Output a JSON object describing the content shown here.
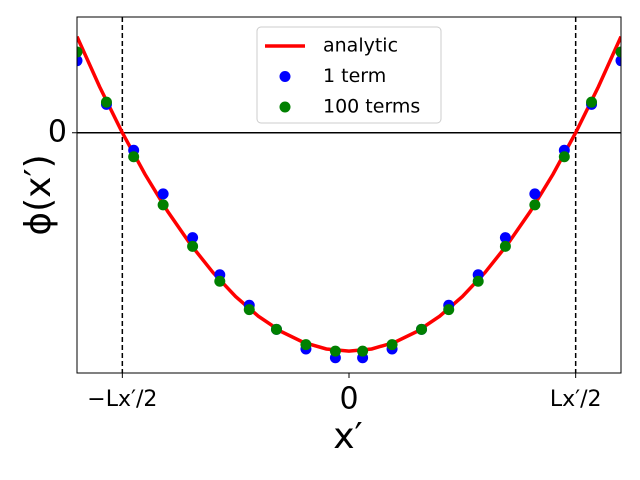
{
  "chart_data": {
    "type": "line",
    "xlabel": "x′",
    "ylabel": "ϕ(x′)",
    "xlim": [
      -1.2,
      1.2
    ],
    "ylim": [
      -1.1,
      0.53
    ],
    "xticks": [
      {
        "value": -1,
        "label": "−Lx′/2"
      },
      0,
      {
        "value": 1,
        "label": "Lx′/2"
      }
    ],
    "yticks": [
      0
    ],
    "hline": 0,
    "vlines": [
      -1,
      1
    ],
    "legend": "upper center",
    "series": [
      {
        "name": "analytic",
        "type": "line",
        "color": "#ff0000",
        "x": [
          -1.2,
          -1.1,
          -1.0,
          -0.9,
          -0.8,
          -0.7,
          -0.6,
          -0.5,
          -0.4,
          -0.3,
          -0.2,
          -0.1,
          0,
          0.1,
          0.2,
          0.3,
          0.4,
          0.5,
          0.6,
          0.7,
          0.8,
          0.9,
          1.0,
          1.1,
          1.2
        ],
        "values": [
          0.44,
          0.21,
          0,
          -0.19,
          -0.36,
          -0.51,
          -0.64,
          -0.75,
          -0.84,
          -0.91,
          -0.96,
          -0.99,
          -1,
          -0.99,
          -0.96,
          -0.91,
          -0.84,
          -0.75,
          -0.64,
          -0.51,
          -0.36,
          -0.19,
          0,
          0.21,
          0.44
        ]
      },
      {
        "name": "1 term",
        "type": "scatter",
        "color": "#0000ff",
        "x": [
          -1.2,
          -1.07,
          -0.95,
          -0.82,
          -0.69,
          -0.57,
          -0.44,
          -0.32,
          -0.19,
          -0.06,
          0.06,
          0.19,
          0.32,
          0.44,
          0.57,
          0.69,
          0.82,
          0.95,
          1.07,
          1.2
        ],
        "values": [
          0.33,
          0.13,
          -0.08,
          -0.28,
          -0.48,
          -0.65,
          -0.79,
          -0.9,
          -0.99,
          -1.03,
          -1.03,
          -0.99,
          -0.9,
          -0.79,
          -0.65,
          -0.48,
          -0.28,
          -0.08,
          0.13,
          0.33
        ]
      },
      {
        "name": "100 terms",
        "type": "scatter",
        "color": "#008000",
        "x": [
          -1.2,
          -1.07,
          -0.95,
          -0.82,
          -0.69,
          -0.57,
          -0.44,
          -0.32,
          -0.19,
          -0.06,
          0.06,
          0.19,
          0.32,
          0.44,
          0.57,
          0.69,
          0.82,
          0.95,
          1.07,
          1.2
        ],
        "values": [
          0.37,
          0.14,
          -0.11,
          -0.33,
          -0.52,
          -0.68,
          -0.81,
          -0.9,
          -0.97,
          -1.0,
          -1.0,
          -0.97,
          -0.9,
          -0.81,
          -0.68,
          -0.52,
          -0.33,
          -0.11,
          0.14,
          0.37
        ]
      }
    ]
  }
}
